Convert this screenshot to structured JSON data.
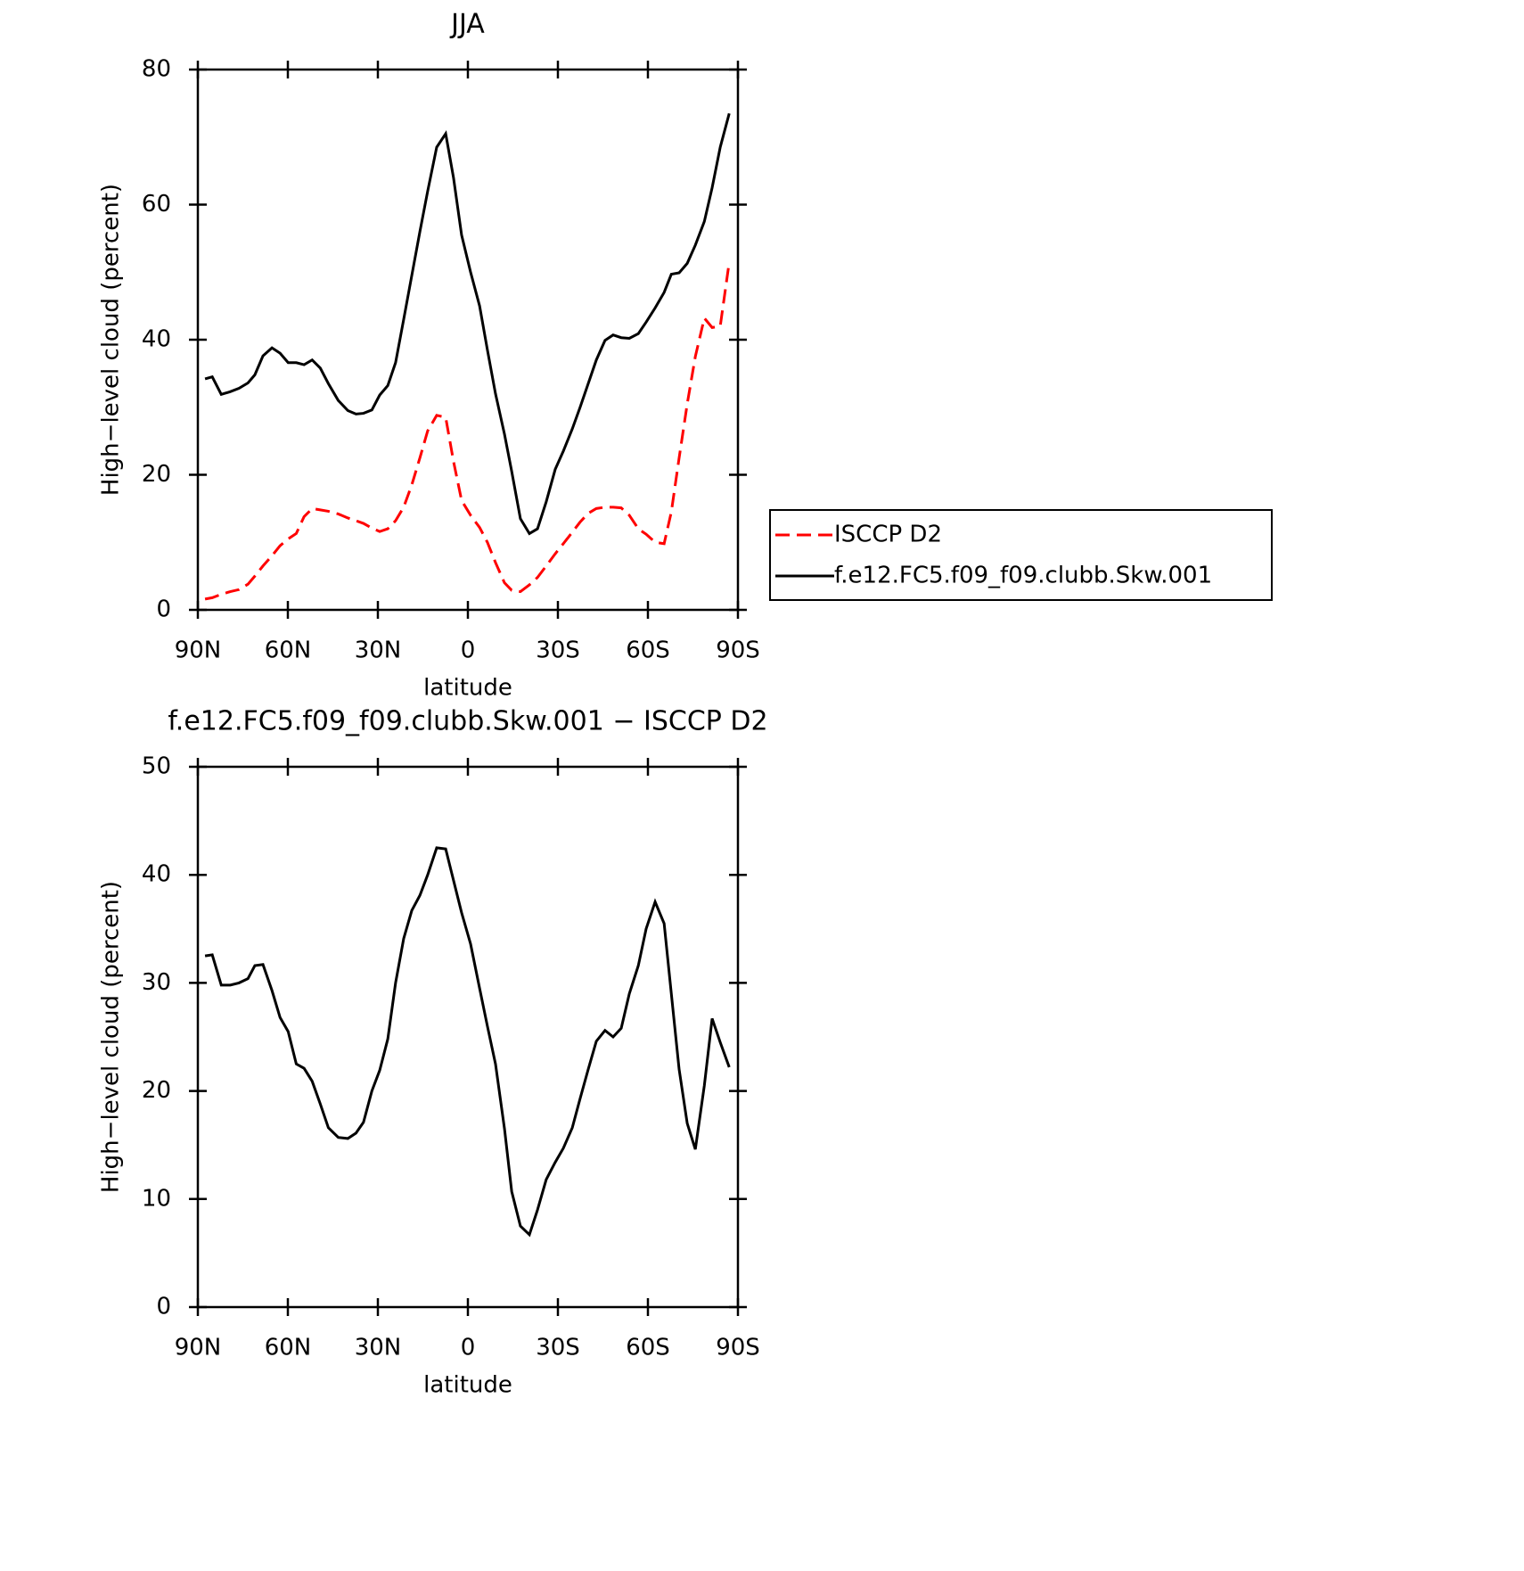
{
  "chart_data": [
    {
      "type": "line",
      "title": "JJA",
      "xlabel": "latitude",
      "ylabel": "High−level cloud (percent)",
      "x": [
        87.6,
        85.2,
        82.2,
        79.2,
        76.3,
        73.3,
        71.0,
        68.3,
        65.3,
        62.6,
        59.9,
        57.2,
        54.6,
        51.9,
        49.2,
        46.5,
        43.2,
        40.0,
        37.3,
        34.8,
        32.0,
        29.4,
        26.7,
        24.1,
        21.4,
        18.7,
        16.0,
        13.4,
        10.4,
        7.4,
        4.8,
        2.1,
        -0.9,
        -3.9,
        -6.5,
        -9.2,
        -12.2,
        -14.6,
        -17.5,
        -20.5,
        -23.2,
        -26.1,
        -29.1,
        -31.8,
        -34.8,
        -37.4,
        -40.1,
        -42.8,
        -45.7,
        -48.4,
        -51.1,
        -53.8,
        -56.8,
        -59.4,
        -62.4,
        -65.4,
        -67.8,
        -70.4,
        -73.1,
        -75.8,
        -78.8,
        -81.4,
        -84.1,
        -87.1
      ],
      "series": [
        {
          "name": "ISCCP D2",
          "color": "#ff0000",
          "dash": true,
          "values": [
            1.6,
            1.8,
            2.3,
            2.7,
            3.0,
            3.8,
            5.0,
            6.5,
            8.0,
            9.5,
            10.5,
            11.3,
            13.8,
            15.0,
            14.8,
            14.6,
            14.2,
            13.6,
            13.2,
            12.8,
            12.1,
            11.6,
            12.0,
            13.2,
            15.2,
            18.5,
            22.5,
            26.5,
            28.8,
            28.5,
            22.0,
            16.2,
            14.0,
            12.2,
            10.0,
            7.0,
            4.0,
            2.9,
            2.7,
            3.7,
            4.8,
            6.5,
            8.3,
            9.8,
            11.5,
            13.0,
            14.3,
            15.0,
            15.2,
            15.2,
            15.1,
            14.0,
            12.0,
            11.2,
            10.0,
            9.8,
            14.5,
            22.5,
            30.5,
            37.5,
            43.2,
            41.8,
            42.0,
            51.5
          ]
        },
        {
          "name": "f.e12.FC5.f09_f09.clubb.Skw.001",
          "color": "#000000",
          "dash": false,
          "values": [
            34.2,
            34.5,
            31.9,
            32.3,
            32.8,
            33.6,
            34.8,
            37.6,
            38.8,
            38.0,
            36.6,
            36.6,
            36.3,
            37.0,
            35.8,
            33.5,
            31.0,
            29.5,
            29.0,
            29.1,
            29.6,
            31.8,
            33.2,
            36.6,
            43.0,
            49.5,
            56.0,
            62.0,
            68.5,
            70.5,
            64.0,
            55.5,
            50.0,
            45.0,
            38.5,
            32.0,
            26.0,
            20.5,
            13.5,
            11.3,
            12.0,
            16.0,
            20.8,
            23.5,
            26.8,
            30.0,
            33.5,
            37.0,
            39.9,
            40.7,
            40.3,
            40.2,
            40.9,
            42.6,
            44.7,
            47.0,
            49.7,
            49.9,
            51.3,
            54.0,
            57.5,
            62.5,
            68.5,
            73.5
          ]
        }
      ],
      "xlim": [
        90,
        -90
      ],
      "xticks": [
        {
          "value": 90,
          "label": "90N"
        },
        {
          "value": 60,
          "label": "60N"
        },
        {
          "value": 30,
          "label": "30N"
        },
        0,
        {
          "value": -30,
          "label": "30S"
        },
        {
          "value": -60,
          "label": "60S"
        },
        {
          "value": -90,
          "label": "90S"
        }
      ],
      "ylim": [
        0,
        80
      ],
      "yticks": [
        0,
        20,
        40,
        60,
        80
      ],
      "legend": "right"
    },
    {
      "type": "line",
      "title": "f.e12.FC5.f09_f09.clubb.Skw.001 − ISCCP D2",
      "xlabel": "latitude",
      "ylabel": "High−level cloud (percent)",
      "x": [
        87.6,
        85.2,
        82.2,
        79.2,
        76.3,
        73.3,
        71.0,
        68.3,
        65.3,
        62.6,
        59.9,
        57.2,
        54.6,
        51.9,
        49.2,
        46.5,
        43.2,
        40.0,
        37.3,
        34.8,
        32.0,
        29.4,
        26.7,
        24.1,
        21.4,
        18.7,
        16.0,
        13.4,
        10.4,
        7.4,
        4.8,
        2.1,
        -0.9,
        -3.9,
        -6.5,
        -9.2,
        -12.2,
        -14.6,
        -17.5,
        -20.5,
        -23.2,
        -26.1,
        -29.1,
        -31.8,
        -34.8,
        -37.4,
        -40.1,
        -42.8,
        -45.7,
        -48.4,
        -51.1,
        -53.8,
        -56.8,
        -59.4,
        -62.4,
        -65.4,
        -67.8,
        -70.4,
        -73.1,
        -75.8,
        -78.8,
        -81.4,
        -84.1,
        -87.1
      ],
      "color": "#000000",
      "values": [
        32.5,
        32.6,
        29.8,
        29.8,
        30.0,
        30.4,
        31.6,
        31.7,
        29.3,
        26.8,
        25.5,
        22.5,
        22.1,
        20.9,
        18.8,
        16.6,
        15.7,
        15.6,
        16.1,
        17.1,
        20.0,
        21.9,
        24.8,
        30.0,
        34.1,
        36.7,
        38.1,
        40.0,
        42.5,
        42.4,
        39.5,
        36.5,
        33.6,
        29.5,
        26.0,
        22.5,
        16.5,
        10.7,
        7.5,
        6.7,
        9.0,
        11.8,
        13.4,
        14.7,
        16.6,
        19.3,
        22.0,
        24.6,
        25.6,
        25.0,
        25.8,
        29.0,
        31.6,
        35.0,
        37.5,
        35.5,
        29.0,
        22.0,
        17.0,
        14.6,
        20.5,
        26.7,
        24.5,
        22.2
      ],
      "xlim": [
        90,
        -90
      ],
      "xticks": [
        {
          "value": 90,
          "label": "90N"
        },
        {
          "value": 60,
          "label": "60N"
        },
        {
          "value": 30,
          "label": "30N"
        },
        0,
        {
          "value": -30,
          "label": "30S"
        },
        {
          "value": -60,
          "label": "60S"
        },
        {
          "value": -90,
          "label": "90S"
        }
      ],
      "ylim": [
        0,
        50
      ],
      "yticks": [
        0,
        10,
        20,
        30,
        40,
        50
      ]
    }
  ]
}
